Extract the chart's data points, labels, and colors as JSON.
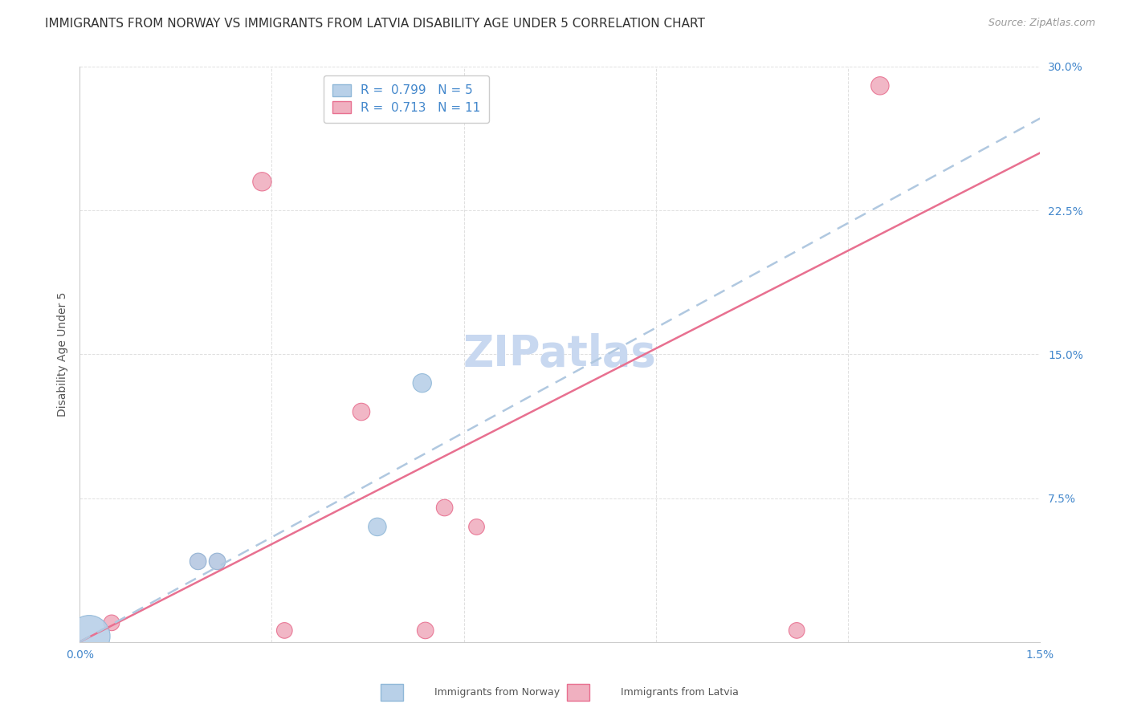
{
  "title": "IMMIGRANTS FROM NORWAY VS IMMIGRANTS FROM LATVIA DISABILITY AGE UNDER 5 CORRELATION CHART",
  "source": "Source: ZipAtlas.com",
  "xlabel": "",
  "ylabel": "Disability Age Under 5",
  "xlim": [
    0.0,
    0.015
  ],
  "ylim": [
    0.0,
    0.3
  ],
  "xticks": [
    0.0,
    0.003,
    0.006,
    0.009,
    0.012,
    0.015
  ],
  "yticks": [
    0.0,
    0.075,
    0.15,
    0.225,
    0.3
  ],
  "xticklabels": [
    "0.0%",
    "",
    "",
    "",
    "",
    "1.5%"
  ],
  "yticklabels": [
    "",
    "7.5%",
    "15.0%",
    "22.5%",
    "30.0%"
  ],
  "norway_label": "Immigrants from Norway",
  "latvia_label": "Immigrants from Latvia",
  "norway_R": "0.799",
  "norway_N": "5",
  "latvia_R": "0.713",
  "latvia_N": "11",
  "norway_color": "#b8d0e8",
  "norway_edge_color": "#90b8d8",
  "norway_line_color": "#b0c8e0",
  "latvia_color": "#f0b0c0",
  "latvia_edge_color": "#e87090",
  "latvia_line_color": "#e87090",
  "norway_points_x": [
    0.00015,
    0.00185,
    0.00215,
    0.00465,
    0.00535
  ],
  "norway_points_y": [
    0.003,
    0.042,
    0.042,
    0.06,
    0.135
  ],
  "norway_sizes": [
    1400,
    220,
    220,
    260,
    280
  ],
  "latvia_points_x": [
    0.0005,
    0.00185,
    0.00215,
    0.00285,
    0.0032,
    0.0044,
    0.0054,
    0.0057,
    0.0062,
    0.0112,
    0.0125
  ],
  "latvia_points_y": [
    0.01,
    0.042,
    0.042,
    0.24,
    0.006,
    0.12,
    0.006,
    0.07,
    0.06,
    0.006,
    0.29
  ],
  "latvia_sizes": [
    200,
    200,
    200,
    280,
    200,
    240,
    220,
    220,
    200,
    200,
    260
  ],
  "norway_line_x0": 0.0,
  "norway_line_y0": 0.0,
  "norway_line_x1": 0.015,
  "norway_line_y1": 0.273,
  "latvia_line_x0": 0.0,
  "latvia_line_y0": 0.0,
  "latvia_line_x1": 0.015,
  "latvia_line_y1": 0.255,
  "watermark": "ZIPatlas",
  "watermark_color": "#c8d8f0",
  "background_color": "#ffffff",
  "grid_color": "#e0e0e0",
  "legend_norway_color": "#b8d0e8",
  "legend_norway_edge": "#90b8d8",
  "legend_latvia_color": "#f0b0c0",
  "legend_latvia_edge": "#e87090",
  "title_fontsize": 11,
  "source_fontsize": 9,
  "axis_label_fontsize": 10,
  "tick_fontsize": 10,
  "legend_fontsize": 11,
  "watermark_fontsize": 38
}
